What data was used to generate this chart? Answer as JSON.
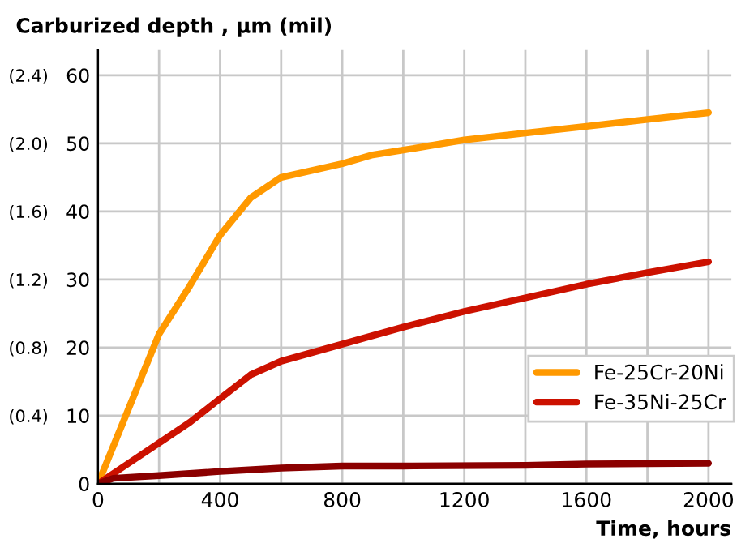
{
  "chart_data": {
    "type": "line",
    "xlabel": "Time, hours",
    "ylabel": "Carburized depth , μm (mil)",
    "xlim": [
      0,
      2075
    ],
    "ylim": [
      0,
      63.7
    ],
    "xticks": [
      0,
      {
        "value": 200,
        "label": null
      },
      400,
      {
        "value": 600,
        "label": null
      },
      800,
      {
        "value": 1000,
        "label": null
      },
      1200,
      {
        "value": 1400,
        "label": null
      },
      1600,
      {
        "value": 1800,
        "label": null
      },
      2000
    ],
    "yticks": [
      0,
      10,
      20,
      30,
      40,
      50,
      60
    ],
    "y2lim": [
      0,
      2.548
    ],
    "y2ticks": [
      {
        "value": 0.4,
        "label": "(0.4)"
      },
      {
        "value": 0.8,
        "label": "(0.8)"
      },
      {
        "value": 1.2,
        "label": "(1.2)"
      },
      {
        "value": 1.6,
        "label": "(1.6)"
      },
      {
        "value": 2.0,
        "label": "(2.0)"
      },
      {
        "value": 2.4,
        "label": "(2.4)"
      }
    ],
    "grid": true,
    "legend": "bottom right",
    "marker": "none",
    "line_style": "solid",
    "series": [
      {
        "name": "Fe-25Cr-20Ni",
        "color": "#ff9900",
        "x": [
          0,
          100,
          200,
          300,
          400,
          500,
          600,
          800,
          900,
          1000,
          1200,
          1400,
          1600,
          1800,
          2000
        ],
        "values": [
          0,
          11,
          22,
          29,
          36.5,
          42,
          45,
          47,
          48.3,
          49,
          50.5,
          51.5,
          52.5,
          53.5,
          54.5
        ]
      },
      {
        "name": "Fe-35Ni-25Cr",
        "color": "#cc1100",
        "x": [
          0,
          100,
          200,
          300,
          400,
          500,
          600,
          800,
          1000,
          1200,
          1400,
          1600,
          1800,
          2000
        ],
        "values": [
          0,
          3,
          6,
          9,
          12.5,
          16,
          18,
          20.5,
          23,
          25.3,
          27.3,
          29.3,
          31,
          32.6
        ]
      },
      {
        "color": "#8b0000",
        "x": [
          0,
          50,
          200,
          400,
          600,
          800,
          1000,
          1400,
          1600,
          2000
        ],
        "values": [
          0,
          0.8,
          1.2,
          1.8,
          2.3,
          2.6,
          2.6,
          2.7,
          2.9,
          3.0
        ]
      }
    ]
  }
}
